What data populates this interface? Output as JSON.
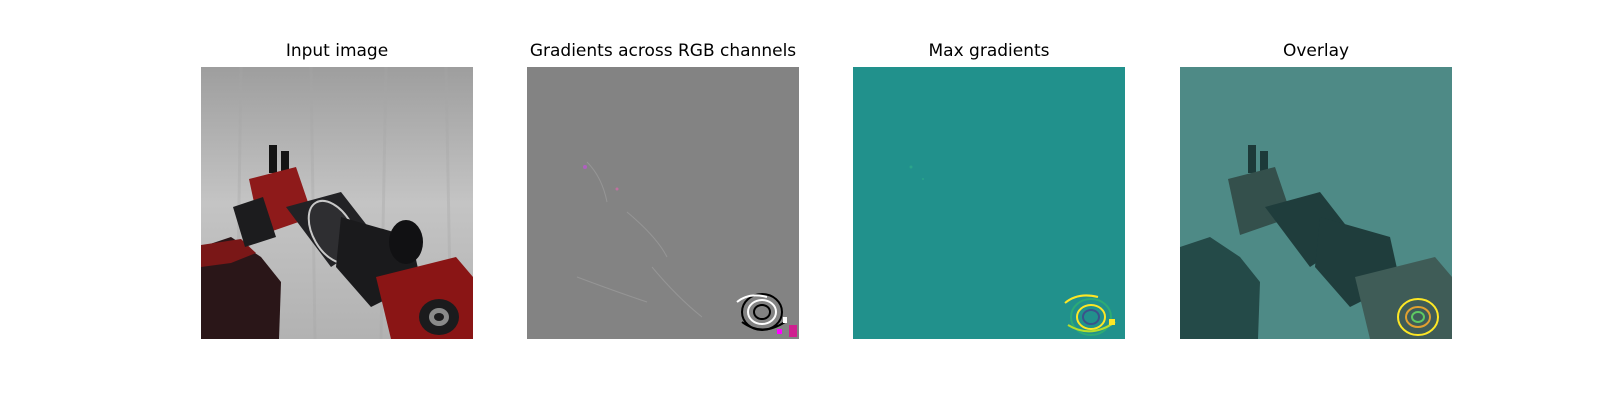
{
  "figure": {
    "panels": [
      {
        "title": "Input image"
      },
      {
        "title": "Gradients across RGB channels"
      },
      {
        "title": "Max gradients"
      },
      {
        "title": "Overlay"
      }
    ]
  },
  "colors": {
    "background_wall": "#b8b8b8",
    "gripper_red": "#8e1a1a",
    "arm_dark": "#1c1c1e",
    "gradient_gray": "#838383",
    "viridis_teal": "#21918c",
    "overlay_teal": "#4a8a84",
    "highlight_yellow": "#fde725"
  }
}
